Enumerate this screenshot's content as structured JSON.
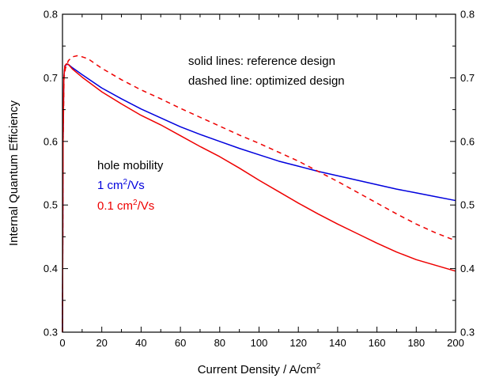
{
  "chart_data": {
    "type": "line",
    "title": "",
    "xlabel": "Current Density / A/cm",
    "xlabel_superscript": "2",
    "ylabel": "Internal Quantum Efficiency",
    "xlim": [
      0,
      200
    ],
    "ylim": [
      0.3,
      0.8
    ],
    "x_ticks": [
      0,
      20,
      40,
      60,
      80,
      100,
      120,
      140,
      160,
      180,
      200
    ],
    "y_ticks": [
      0.3,
      0.4,
      0.5,
      0.6,
      0.7,
      0.8
    ],
    "y_tick_labels": [
      "0.3",
      "0.4",
      "0.5",
      "0.6",
      "0.7",
      "0.8"
    ],
    "grid": false,
    "mirror_right_axis": true,
    "annotations": {
      "line1": "solid lines: reference design",
      "line2": "dashed line: optimized design",
      "legend_header": "hole mobility",
      "legend_blue_prefix": "1 cm",
      "legend_blue_sup": "2",
      "legend_blue_suffix": "/Vs",
      "legend_red_prefix": "0.1 cm",
      "legend_red_sup": "2",
      "legend_red_suffix": "/Vs"
    },
    "series": [
      {
        "color": "#0000dd",
        "style": "solid",
        "x": [
          0,
          0.3,
          0.7,
          1.2,
          2,
          3,
          5,
          10,
          20,
          30,
          40,
          50,
          60,
          70,
          80,
          90,
          100,
          110,
          120,
          130,
          140,
          150,
          160,
          170,
          180,
          190,
          200
        ],
        "y": [
          0.3,
          0.6,
          0.7,
          0.718,
          0.721,
          0.721,
          0.716,
          0.705,
          0.684,
          0.667,
          0.651,
          0.637,
          0.623,
          0.611,
          0.6,
          0.589,
          0.579,
          0.569,
          0.561,
          0.553,
          0.546,
          0.539,
          0.532,
          0.525,
          0.519,
          0.513,
          0.507
        ]
      },
      {
        "color": "#ee0000",
        "style": "solid",
        "x": [
          0,
          0.3,
          0.7,
          1.2,
          2,
          3,
          5,
          10,
          20,
          30,
          40,
          50,
          60,
          70,
          80,
          90,
          100,
          110,
          120,
          130,
          140,
          150,
          160,
          170,
          180,
          190,
          200
        ],
        "y": [
          0.3,
          0.6,
          0.7,
          0.719,
          0.722,
          0.721,
          0.714,
          0.701,
          0.678,
          0.659,
          0.641,
          0.626,
          0.609,
          0.592,
          0.576,
          0.558,
          0.539,
          0.521,
          0.503,
          0.486,
          0.47,
          0.455,
          0.44,
          0.426,
          0.414,
          0.405,
          0.396
        ]
      },
      {
        "color": "#ee0000",
        "style": "dashed",
        "x": [
          0,
          0.3,
          0.8,
          1.5,
          3,
          5,
          8,
          13,
          20,
          30,
          40,
          50,
          60,
          70,
          80,
          90,
          100,
          110,
          120,
          130,
          140,
          150,
          160,
          170,
          180,
          190,
          200
        ],
        "y": [
          0.3,
          0.6,
          0.7,
          0.715,
          0.727,
          0.733,
          0.735,
          0.73,
          0.715,
          0.697,
          0.681,
          0.667,
          0.652,
          0.638,
          0.624,
          0.61,
          0.597,
          0.583,
          0.569,
          0.553,
          0.537,
          0.52,
          0.503,
          0.486,
          0.47,
          0.456,
          0.444
        ]
      }
    ]
  }
}
